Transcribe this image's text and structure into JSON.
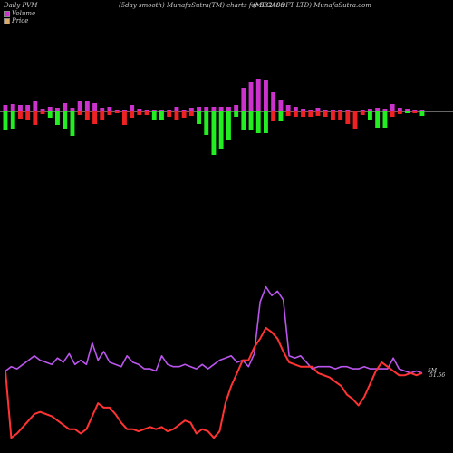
{
  "header": {
    "left": "Daily PVM",
    "center": "(5day smooth) MunafaSutra(TM) charts for 532408",
    "right": "(MEGASOFT LTD) MunafaSutra.com"
  },
  "colors": {
    "background": "#000000",
    "volume_up": "#cc33cc",
    "volume_green": "#22ee22",
    "volume_red": "#ee2222",
    "volume_line": "#bb55ee",
    "price_line": "#ff3333",
    "baseline": "#cccccc"
  },
  "chart_data": [
    {
      "type": "bar",
      "title": "",
      "legend": [
        {
          "name": "Volume",
          "color": "#cc33cc"
        },
        {
          "name": "Price",
          "color": "#ddaa66"
        }
      ],
      "legend_placement": "top-left",
      "grid": false,
      "ylim": [
        -0.8,
        0.5
      ],
      "values": [
        {
          "up": 0.07,
          "down": 0.21,
          "downColor": "green"
        },
        {
          "up": 0.08,
          "down": 0.19,
          "downColor": "green"
        },
        {
          "up": 0.07,
          "down": 0.08,
          "downColor": "red"
        },
        {
          "up": 0.07,
          "down": 0.09,
          "downColor": "red"
        },
        {
          "up": 0.11,
          "down": 0.15,
          "downColor": "red"
        },
        {
          "up": 0.03,
          "down": 0.03,
          "downColor": "red"
        },
        {
          "up": 0.05,
          "down": 0.07,
          "downColor": "green"
        },
        {
          "up": 0.04,
          "down": 0.15,
          "downColor": "green"
        },
        {
          "up": 0.09,
          "down": 0.19,
          "downColor": "green"
        },
        {
          "up": 0.04,
          "down": 0.27,
          "downColor": "green"
        },
        {
          "up": 0.12,
          "down": 0.04,
          "downColor": "red"
        },
        {
          "up": 0.12,
          "down": 0.09,
          "downColor": "red"
        },
        {
          "up": 0.09,
          "down": 0.14,
          "downColor": "red"
        },
        {
          "up": 0.04,
          "down": 0.09,
          "downColor": "red"
        },
        {
          "up": 0.05,
          "down": 0.04,
          "downColor": "red"
        },
        {
          "up": 0.02,
          "down": 0.02,
          "downColor": "red"
        },
        {
          "up": 0.02,
          "down": 0.15,
          "downColor": "red"
        },
        {
          "up": 0.07,
          "down": 0.07,
          "downColor": "red"
        },
        {
          "up": 0.03,
          "down": 0.04,
          "downColor": "red"
        },
        {
          "up": 0.02,
          "down": 0.04,
          "downColor": "red"
        },
        {
          "up": 0.02,
          "down": 0.09,
          "downColor": "green"
        },
        {
          "up": 0.02,
          "down": 0.09,
          "downColor": "green"
        },
        {
          "up": 0.02,
          "down": 0.06,
          "downColor": "red"
        },
        {
          "up": 0.05,
          "down": 0.09,
          "downColor": "red"
        },
        {
          "up": 0.02,
          "down": 0.07,
          "downColor": "red"
        },
        {
          "up": 0.04,
          "down": 0.05,
          "downColor": "red"
        },
        {
          "up": 0.05,
          "down": 0.14,
          "downColor": "green"
        },
        {
          "up": 0.05,
          "down": 0.26,
          "downColor": "green"
        },
        {
          "up": 0.05,
          "down": 0.48,
          "downColor": "green"
        },
        {
          "up": 0.05,
          "down": 0.41,
          "downColor": "green"
        },
        {
          "up": 0.05,
          "down": 0.32,
          "downColor": "green"
        },
        {
          "up": 0.07,
          "down": 0.06,
          "downColor": "green"
        },
        {
          "up": 0.26,
          "down": 0.21,
          "downColor": "green"
        },
        {
          "up": 0.32,
          "down": 0.21,
          "downColor": "green"
        },
        {
          "up": 0.36,
          "down": 0.24,
          "downColor": "green"
        },
        {
          "up": 0.35,
          "down": 0.24,
          "downColor": "green"
        },
        {
          "up": 0.21,
          "down": 0.11,
          "downColor": "red"
        },
        {
          "up": 0.13,
          "down": 0.11,
          "downColor": "green"
        },
        {
          "up": 0.07,
          "down": 0.05,
          "downColor": "red"
        },
        {
          "up": 0.05,
          "down": 0.06,
          "downColor": "red"
        },
        {
          "up": 0.03,
          "down": 0.06,
          "downColor": "red"
        },
        {
          "up": 0.02,
          "down": 0.06,
          "downColor": "red"
        },
        {
          "up": 0.04,
          "down": 0.05,
          "downColor": "red"
        },
        {
          "up": 0.02,
          "down": 0.06,
          "downColor": "red"
        },
        {
          "up": 0.02,
          "down": 0.09,
          "downColor": "red"
        },
        {
          "up": 0.02,
          "down": 0.09,
          "downColor": "red"
        },
        {
          "up": 0.02,
          "down": 0.14,
          "downColor": "red"
        },
        {
          "up": 0.01,
          "down": 0.19,
          "downColor": "red"
        },
        {
          "up": 0.02,
          "down": 0.04,
          "downColor": "red"
        },
        {
          "up": 0.03,
          "down": 0.09,
          "downColor": "green"
        },
        {
          "up": 0.04,
          "down": 0.18,
          "downColor": "green"
        },
        {
          "up": 0.03,
          "down": 0.18,
          "downColor": "green"
        },
        {
          "up": 0.08,
          "down": 0.06,
          "downColor": "red"
        },
        {
          "up": 0.04,
          "down": 0.03,
          "downColor": "red"
        },
        {
          "up": 0.03,
          "down": 0.02,
          "downColor": "green"
        },
        {
          "up": 0.02,
          "down": 0.02,
          "downColor": "red"
        },
        {
          "up": 0.02,
          "down": 0.05,
          "downColor": "green"
        }
      ]
    },
    {
      "type": "line",
      "title": "",
      "ylim": [
        0,
        100
      ],
      "end_labels": [
        "5M",
        "51.56"
      ],
      "series": [
        {
          "name": "Volume",
          "values": [
            33,
            35,
            34,
            36,
            38,
            40,
            38,
            37,
            36,
            39,
            37,
            41,
            36,
            38,
            36,
            46,
            38,
            42,
            37,
            36,
            35,
            40,
            37,
            36,
            34,
            34,
            33,
            40,
            36,
            35,
            35,
            36,
            35,
            34,
            36,
            34,
            36,
            38,
            39,
            40,
            37,
            38,
            35,
            41,
            65,
            72,
            68,
            70,
            66,
            40,
            39,
            40,
            37,
            34,
            35,
            35,
            35,
            34,
            35,
            35,
            34,
            34,
            35,
            34,
            34,
            34,
            34,
            39,
            34,
            33,
            32,
            33,
            32
          ]
        },
        {
          "name": "Price",
          "values": [
            33,
            2,
            4,
            7,
            10,
            13,
            14,
            13,
            12,
            10,
            8,
            6,
            6,
            4,
            6,
            12,
            18,
            16,
            16,
            13,
            9,
            6,
            6,
            5,
            6,
            7,
            6,
            7,
            5,
            6,
            8,
            10,
            9,
            4,
            6,
            5,
            2,
            5,
            18,
            26,
            32,
            38,
            38,
            44,
            48,
            53,
            51,
            48,
            42,
            37,
            36,
            35,
            35,
            35,
            32,
            31,
            30,
            28,
            26,
            22,
            20,
            17,
            21,
            27,
            33,
            37,
            35,
            33,
            31,
            31,
            32,
            31,
            32
          ]
        }
      ]
    }
  ]
}
